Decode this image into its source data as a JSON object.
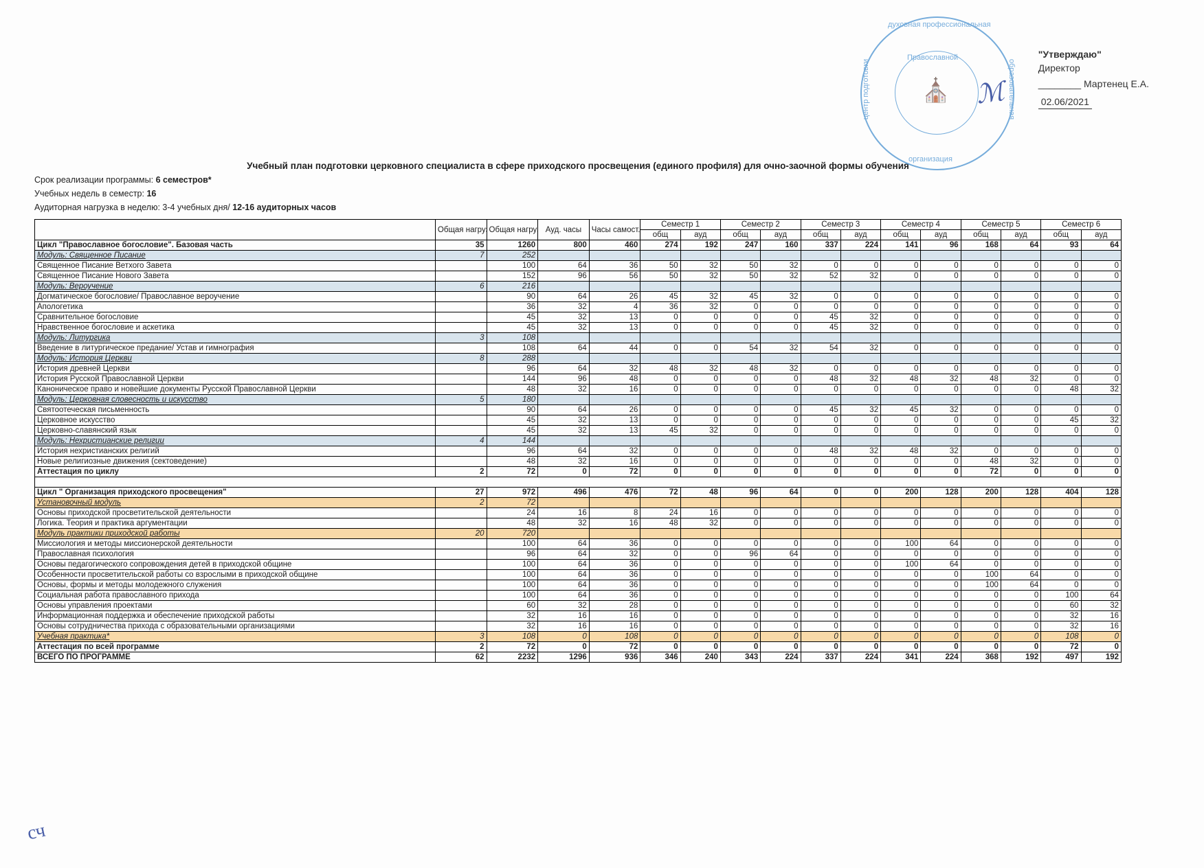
{
  "approve": {
    "utverzhdayu": "\"Утверждаю\"",
    "director": "Директор",
    "name": "Мартенец Е.А.",
    "date": "02.06/2021"
  },
  "stamp": {
    "top_text": "духовная профессиональная",
    "left_text": "центр подготовки",
    "right_text": "образовательная",
    "bottom_text": "организация",
    "inner_text": "Православной",
    "color": "#5f9fd6"
  },
  "heading": {
    "title": "Учебный план подготовки церковного специалиста в сфере приходского просвещения (единого профиля) для очно-заочной формы обучения",
    "line1_label": "Срок реализации программы:",
    "line1_value": "6 семестров*",
    "line2_label": "Учебных недель в семестр:",
    "line2_value": "16",
    "line3_label": "Аудиторная нагрузка в неделю: 3-4 учебных дня/",
    "line3_value": "12-16 аудиторных часов"
  },
  "columns": {
    "c0": "",
    "c1": "Общая нагрузка в з.е.",
    "c2": "Общая нагрузка в часах",
    "c3": "Ауд. часы",
    "c4": "Часы самост. работы",
    "sem": [
      "Семестр 1",
      "Семестр 2",
      "Семестр 3",
      "Семестр 4",
      "Семестр 5",
      "Семестр 6"
    ],
    "sub_total": "общ",
    "sub_aud": "ауд"
  },
  "rows_a": [
    {
      "type": "bold",
      "name": "Цикл \"Православное богословие\". Базовая часть",
      "v": [
        "35",
        "1260",
        "800",
        "460",
        "274",
        "192",
        "247",
        "160",
        "337",
        "224",
        "141",
        "96",
        "168",
        "64",
        "93",
        "64"
      ]
    },
    {
      "type": "module",
      "name": "Модуль: Священное Писание",
      "v": [
        "7",
        "252",
        "",
        "",
        "",
        "",
        "",
        "",
        "",
        "",
        "",
        "",
        "",
        "",
        "",
        ""
      ]
    },
    {
      "type": "plain",
      "name": "Священное Писание Ветхого Завета",
      "v": [
        "",
        "100",
        "64",
        "36",
        "50",
        "32",
        "50",
        "32",
        "0",
        "0",
        "0",
        "0",
        "0",
        "0",
        "0",
        "0"
      ]
    },
    {
      "type": "plain",
      "name": "Священное Писание Нового Завета",
      "v": [
        "",
        "152",
        "96",
        "56",
        "50",
        "32",
        "50",
        "32",
        "52",
        "32",
        "0",
        "0",
        "0",
        "0",
        "0",
        "0"
      ]
    },
    {
      "type": "module",
      "name": "Модуль: Вероучение",
      "v": [
        "6",
        "216",
        "",
        "",
        "",
        "",
        "",
        "",
        "",
        "",
        "",
        "",
        "",
        "",
        "",
        ""
      ]
    },
    {
      "type": "plain",
      "name": "Догматическое богословие/ Православное вероучение",
      "v": [
        "",
        "90",
        "64",
        "26",
        "45",
        "32",
        "45",
        "32",
        "0",
        "0",
        "0",
        "0",
        "0",
        "0",
        "0",
        "0"
      ]
    },
    {
      "type": "plain",
      "name": "Апологетика",
      "v": [
        "",
        "36",
        "32",
        "4",
        "36",
        "32",
        "0",
        "0",
        "0",
        "0",
        "0",
        "0",
        "0",
        "0",
        "0",
        "0"
      ]
    },
    {
      "type": "plain",
      "name": "Сравнительное богословие",
      "v": [
        "",
        "45",
        "32",
        "13",
        "0",
        "0",
        "0",
        "0",
        "45",
        "32",
        "0",
        "0",
        "0",
        "0",
        "0",
        "0"
      ]
    },
    {
      "type": "plain",
      "name": "Нравственное богословие и аскетика",
      "v": [
        "",
        "45",
        "32",
        "13",
        "0",
        "0",
        "0",
        "0",
        "45",
        "32",
        "0",
        "0",
        "0",
        "0",
        "0",
        "0"
      ]
    },
    {
      "type": "module",
      "name": "Модуль: Литургика",
      "v": [
        "3",
        "108",
        "",
        "",
        "",
        "",
        "",
        "",
        "",
        "",
        "",
        "",
        "",
        "",
        "",
        ""
      ]
    },
    {
      "type": "plain",
      "name": "Введение в литургическое предание/ Устав и гимнография",
      "v": [
        "",
        "108",
        "64",
        "44",
        "0",
        "0",
        "54",
        "32",
        "54",
        "32",
        "0",
        "0",
        "0",
        "0",
        "0",
        "0"
      ]
    },
    {
      "type": "module",
      "name": "Модуль: История Церкви",
      "v": [
        "8",
        "288",
        "",
        "",
        "",
        "",
        "",
        "",
        "",
        "",
        "",
        "",
        "",
        "",
        "",
        ""
      ]
    },
    {
      "type": "plain",
      "name": "История древней Церкви",
      "v": [
        "",
        "96",
        "64",
        "32",
        "48",
        "32",
        "48",
        "32",
        "0",
        "0",
        "0",
        "0",
        "0",
        "0",
        "0",
        "0"
      ]
    },
    {
      "type": "plain",
      "name": "История Русской Православной Церкви",
      "v": [
        "",
        "144",
        "96",
        "48",
        "0",
        "0",
        "0",
        "0",
        "48",
        "32",
        "48",
        "32",
        "48",
        "32",
        "0",
        "0"
      ]
    },
    {
      "type": "plain",
      "name": "Каноническое право и новейшие документы Русской Православной Церкви",
      "v": [
        "",
        "48",
        "32",
        "16",
        "0",
        "0",
        "0",
        "0",
        "0",
        "0",
        "0",
        "0",
        "0",
        "0",
        "48",
        "32"
      ]
    },
    {
      "type": "module",
      "name": "Модуль: Церковная словесность и искусство",
      "v": [
        "5",
        "180",
        "",
        "",
        "",
        "",
        "",
        "",
        "",
        "",
        "",
        "",
        "",
        "",
        "",
        ""
      ]
    },
    {
      "type": "plain",
      "name": "Святоотеческая письменность",
      "v": [
        "",
        "90",
        "64",
        "26",
        "0",
        "0",
        "0",
        "0",
        "45",
        "32",
        "45",
        "32",
        "0",
        "0",
        "0",
        "0"
      ]
    },
    {
      "type": "plain",
      "name": "Церковное искусство",
      "v": [
        "",
        "45",
        "32",
        "13",
        "0",
        "0",
        "0",
        "0",
        "0",
        "0",
        "0",
        "0",
        "0",
        "0",
        "45",
        "32"
      ]
    },
    {
      "type": "plain",
      "name": "Церковно-славянский язык",
      "v": [
        "",
        "45",
        "32",
        "13",
        "45",
        "32",
        "0",
        "0",
        "0",
        "0",
        "0",
        "0",
        "0",
        "0",
        "0",
        "0"
      ]
    },
    {
      "type": "module",
      "name": "Модуль: Нехристианские религии",
      "v": [
        "4",
        "144",
        "",
        "",
        "",
        "",
        "",
        "",
        "",
        "",
        "",
        "",
        "",
        "",
        "",
        ""
      ]
    },
    {
      "type": "plain",
      "name": "История нехристианских религий",
      "v": [
        "",
        "96",
        "64",
        "32",
        "0",
        "0",
        "0",
        "0",
        "48",
        "32",
        "48",
        "32",
        "0",
        "0",
        "0",
        "0"
      ]
    },
    {
      "type": "plain",
      "name": "Новые религиозные движения (сектоведение)",
      "v": [
        "",
        "48",
        "32",
        "16",
        "0",
        "0",
        "0",
        "0",
        "0",
        "0",
        "0",
        "0",
        "48",
        "32",
        "0",
        "0"
      ]
    },
    {
      "type": "bold",
      "name": "Аттестация по циклу",
      "v": [
        "2",
        "72",
        "0",
        "72",
        "0",
        "0",
        "0",
        "0",
        "0",
        "0",
        "0",
        "0",
        "72",
        "0",
        "0",
        "0"
      ]
    }
  ],
  "rows_b": [
    {
      "type": "bold",
      "name": "Цикл \" Организация приходского просвещения\"",
      "v": [
        "27",
        "972",
        "496",
        "476",
        "72",
        "48",
        "96",
        "64",
        "0",
        "0",
        "200",
        "128",
        "200",
        "128",
        "404",
        "128"
      ]
    },
    {
      "type": "orange",
      "name": "Установочный модуль",
      "v": [
        "2",
        "72",
        "",
        "",
        "",
        "",
        "",
        "",
        "",
        "",
        "",
        "",
        "",
        "",
        "",
        ""
      ]
    },
    {
      "type": "plain",
      "name": "Основы приходской просветительской деятельности",
      "v": [
        "",
        "24",
        "16",
        "8",
        "24",
        "16",
        "0",
        "0",
        "0",
        "0",
        "0",
        "0",
        "0",
        "0",
        "0",
        "0"
      ]
    },
    {
      "type": "plain",
      "name": "Логика. Теория и практика аргументации",
      "v": [
        "",
        "48",
        "32",
        "16",
        "48",
        "32",
        "0",
        "0",
        "0",
        "0",
        "0",
        "0",
        "0",
        "0",
        "0",
        "0"
      ]
    },
    {
      "type": "orange",
      "name": "Модуль практики приходской работы",
      "v": [
        "20",
        "720",
        "",
        "",
        "",
        "",
        "",
        "",
        "",
        "",
        "",
        "",
        "",
        "",
        "",
        ""
      ]
    },
    {
      "type": "plain",
      "name": "Миссиология и методы миссионерской деятельности",
      "v": [
        "",
        "100",
        "64",
        "36",
        "0",
        "0",
        "0",
        "0",
        "0",
        "0",
        "100",
        "64",
        "0",
        "0",
        "0",
        "0"
      ]
    },
    {
      "type": "plain",
      "name": "Православная психология",
      "v": [
        "",
        "96",
        "64",
        "32",
        "0",
        "0",
        "96",
        "64",
        "0",
        "0",
        "0",
        "0",
        "0",
        "0",
        "0",
        "0"
      ]
    },
    {
      "type": "plain",
      "name": "Основы педагогического сопровождения детей в приходской общине",
      "v": [
        "",
        "100",
        "64",
        "36",
        "0",
        "0",
        "0",
        "0",
        "0",
        "0",
        "100",
        "64",
        "0",
        "0",
        "0",
        "0"
      ]
    },
    {
      "type": "plain",
      "name": "Особенности просветительской работы со взрослыми в приходской общине",
      "v": [
        "",
        "100",
        "64",
        "36",
        "0",
        "0",
        "0",
        "0",
        "0",
        "0",
        "0",
        "0",
        "100",
        "64",
        "0",
        "0"
      ]
    },
    {
      "type": "plain",
      "name": "Основы, формы и методы молодежного служения",
      "v": [
        "",
        "100",
        "64",
        "36",
        "0",
        "0",
        "0",
        "0",
        "0",
        "0",
        "0",
        "0",
        "100",
        "64",
        "0",
        "0"
      ]
    },
    {
      "type": "plain",
      "name": "Социальная работа православного прихода",
      "v": [
        "",
        "100",
        "64",
        "36",
        "0",
        "0",
        "0",
        "0",
        "0",
        "0",
        "0",
        "0",
        "0",
        "0",
        "100",
        "64"
      ]
    },
    {
      "type": "plain",
      "name": "Основы управления проектами",
      "v": [
        "",
        "60",
        "32",
        "28",
        "0",
        "0",
        "0",
        "0",
        "0",
        "0",
        "0",
        "0",
        "0",
        "0",
        "60",
        "32"
      ]
    },
    {
      "type": "plain",
      "name": "Информационная поддержка и обеспечение приходской работы",
      "v": [
        "",
        "32",
        "16",
        "16",
        "0",
        "0",
        "0",
        "0",
        "0",
        "0",
        "0",
        "0",
        "0",
        "0",
        "32",
        "16"
      ]
    },
    {
      "type": "plain",
      "name": "Основы сотрудничества прихода с образовательными организациями",
      "v": [
        "",
        "32",
        "16",
        "16",
        "0",
        "0",
        "0",
        "0",
        "0",
        "0",
        "0",
        "0",
        "0",
        "0",
        "32",
        "16"
      ]
    },
    {
      "type": "orange",
      "name": "Учебная практика*",
      "v": [
        "3",
        "108",
        "0",
        "108",
        "0",
        "0",
        "0",
        "0",
        "0",
        "0",
        "0",
        "0",
        "0",
        "0",
        "108",
        "0"
      ]
    },
    {
      "type": "bold",
      "name": "Аттестация по всей программе",
      "v": [
        "2",
        "72",
        "0",
        "72",
        "0",
        "0",
        "0",
        "0",
        "0",
        "0",
        "0",
        "0",
        "0",
        "0",
        "72",
        "0"
      ]
    },
    {
      "type": "total",
      "name": "ВСЕГО ПО ПРОГРАММЕ",
      "v": [
        "62",
        "2232",
        "1296",
        "936",
        "346",
        "240",
        "343",
        "224",
        "337",
        "224",
        "341",
        "224",
        "368",
        "192",
        "497",
        "192"
      ]
    }
  ],
  "page_number": "сч"
}
